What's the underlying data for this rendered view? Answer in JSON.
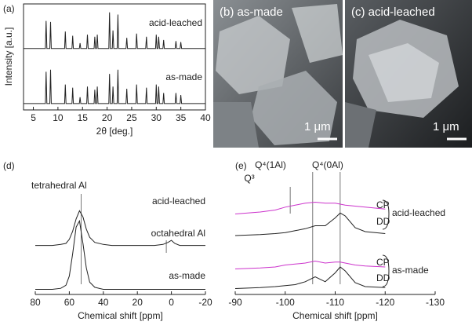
{
  "chart_data": [
    {
      "type": "line",
      "panel": "(a)",
      "ylabel": "Intensity [a.u.]",
      "xlabel": "2θ [deg.]",
      "xlim": [
        3,
        40
      ],
      "xticks": [
        5,
        10,
        15,
        20,
        25,
        30,
        35,
        40
      ],
      "ylim": [
        0,
        10
      ],
      "x": [
        3,
        7.45,
        7.6,
        7.75,
        8.35,
        8.5,
        8.65,
        11.35,
        11.5,
        11.65,
        12.85,
        13,
        13.15,
        14.35,
        14.5,
        14.65,
        15.85,
        16,
        16.15,
        17.35,
        17.5,
        17.65,
        17.85,
        18,
        18.15,
        20.35,
        20.5,
        20.65,
        21.05,
        21.2,
        21.35,
        22.05,
        22.2,
        22.35,
        23.85,
        24,
        24.15,
        25.85,
        26,
        26.15,
        27.85,
        28,
        28.15,
        29.85,
        30,
        30.15,
        30.35,
        30.5,
        30.65,
        31.35,
        31.5,
        31.65,
        33.85,
        34,
        34.15,
        34.85,
        35,
        35.15,
        40
      ],
      "series": [
        {
          "name": "acid-leached",
          "color": "#222222",
          "values": [
            5.8,
            5.8,
            8.4,
            5.8,
            5.8,
            8.3,
            5.8,
            5.8,
            7.4,
            5.8,
            5.8,
            7.0,
            5.8,
            5.8,
            6.3,
            5.8,
            5.8,
            7.1,
            5.8,
            5.8,
            6.9,
            5.8,
            5.8,
            7.1,
            5.8,
            5.8,
            9.2,
            5.8,
            5.8,
            7.5,
            5.8,
            5.8,
            9.0,
            5.8,
            5.8,
            6.8,
            5.8,
            5.8,
            7.2,
            5.8,
            5.8,
            6.9,
            5.8,
            5.8,
            7.1,
            5.8,
            5.8,
            6.9,
            5.8,
            5.8,
            6.6,
            5.8,
            5.8,
            6.5,
            5.8,
            5.8,
            6.4,
            5.8,
            5.8
          ]
        },
        {
          "name": "as-made",
          "color": "#222222",
          "values": [
            0.6,
            0.6,
            3.6,
            0.6,
            0.6,
            3.8,
            0.6,
            0.6,
            2.4,
            0.6,
            0.6,
            2.1,
            0.6,
            0.6,
            1.2,
            0.6,
            0.6,
            2.2,
            0.6,
            0.6,
            1.9,
            0.6,
            0.6,
            2.2,
            0.6,
            0.6,
            3.4,
            0.6,
            0.6,
            2.2,
            0.6,
            0.6,
            3.8,
            0.6,
            0.6,
            2.0,
            0.6,
            0.6,
            2.4,
            0.6,
            0.6,
            2.1,
            0.6,
            0.6,
            2.4,
            0.6,
            0.6,
            2.2,
            0.6,
            0.6,
            1.6,
            0.6,
            0.6,
            1.6,
            0.6,
            0.6,
            1.4,
            0.6,
            0.6
          ]
        }
      ]
    },
    {
      "type": "line",
      "panel": "(d)",
      "xlabel": "Chemical shift [ppm]",
      "xlim": [
        80,
        -20
      ],
      "xticks": [
        80,
        60,
        40,
        20,
        0,
        -20
      ],
      "ylim": [
        0,
        10
      ],
      "x": [
        80,
        75,
        70,
        65,
        62,
        60,
        58,
        56,
        54,
        52,
        50,
        48,
        45,
        40,
        35,
        30,
        20,
        10,
        5,
        2,
        0,
        -2,
        -5,
        -10,
        -20
      ],
      "markers": [
        {
          "label": "tetrahedral Al",
          "x": 53
        },
        {
          "label": "octahedral Al",
          "x": 3
        }
      ],
      "series": [
        {
          "name": "acid-leached",
          "color": "#222222",
          "values": [
            4.8,
            4.8,
            4.8,
            4.9,
            5.0,
            5.4,
            6.2,
            7.4,
            8.2,
            7.6,
            6.4,
            5.6,
            5.1,
            4.9,
            4.8,
            4.8,
            4.8,
            4.8,
            4.9,
            5.1,
            5.3,
            5.0,
            4.8,
            4.8,
            4.8
          ]
        },
        {
          "name": "as-made",
          "color": "#222222",
          "values": [
            0.5,
            0.5,
            0.5,
            0.6,
            0.9,
            1.8,
            4.0,
            6.6,
            7.2,
            5.0,
            2.6,
            1.2,
            0.7,
            0.5,
            0.5,
            0.5,
            0.5,
            0.5,
            0.5,
            0.5,
            0.5,
            0.5,
            0.5,
            0.5,
            0.5
          ]
        }
      ]
    },
    {
      "type": "grouped-line",
      "panel": "(e)",
      "xlabel": "Chemical shift [ppm]",
      "xlim": [
        -90,
        -130
      ],
      "xticks": [
        -90,
        -100,
        -110,
        -120,
        -130
      ],
      "ylim": [
        0,
        12
      ],
      "x": [
        -90,
        -95,
        -98,
        -100,
        -102,
        -104,
        -106,
        -108,
        -110,
        -111,
        -112,
        -114,
        -116,
        -120
      ],
      "markers": [
        {
          "label": "Q³",
          "x": -101
        },
        {
          "label": "Q⁴(1Al)",
          "x": -105.5
        },
        {
          "label": "Q⁴(0Al)",
          "x": -111
        }
      ],
      "groups": [
        {
          "name": "acid-leached",
          "series": [
            {
              "name": "CP",
              "color": "#cc33cc",
              "values": [
                8.2,
                8.4,
                8.6,
                8.9,
                9.1,
                9.3,
                9.4,
                9.3,
                9.3,
                9.2,
                9.1,
                9.0,
                8.9,
                8.7
              ]
            },
            {
              "name": "DD",
              "color": "#222222",
              "values": [
                6.0,
                6.1,
                6.2,
                6.3,
                6.5,
                6.7,
                7.0,
                7.0,
                7.8,
                8.3,
                8.0,
                6.8,
                6.4,
                6.2
              ]
            }
          ]
        },
        {
          "name": "as-made",
          "series": [
            {
              "name": "CP",
              "color": "#cc33cc",
              "values": [
                2.6,
                2.7,
                2.8,
                3.0,
                3.1,
                3.2,
                3.4,
                3.2,
                3.3,
                3.3,
                3.2,
                3.0,
                2.9,
                2.8
              ]
            },
            {
              "name": "DD",
              "color": "#222222",
              "values": [
                0.6,
                0.7,
                0.8,
                0.9,
                1.0,
                1.3,
                1.8,
                1.3,
                2.2,
                2.8,
                2.4,
                1.2,
                0.8,
                0.7
              ]
            }
          ]
        }
      ]
    }
  ],
  "images": [
    {
      "label": "(b) as-made",
      "scale": "1 μm"
    },
    {
      "label": "(c) acid-leached",
      "scale": "1 μm"
    }
  ]
}
